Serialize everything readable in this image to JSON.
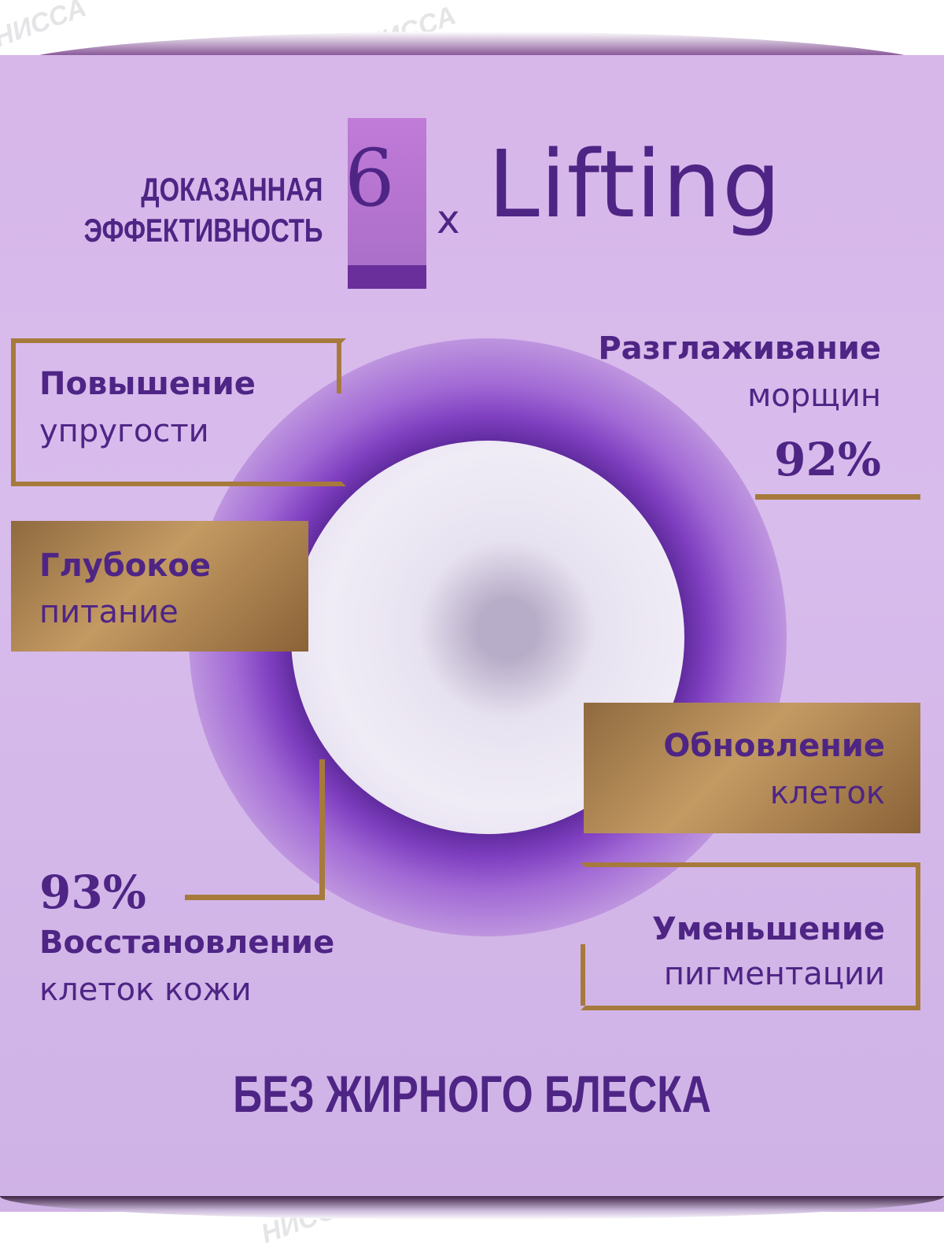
{
  "watermark": "НИССА",
  "header": {
    "line1": "ДОКАЗАННАЯ",
    "line2": "ЭФФЕКТИВНОСТЬ",
    "number": "6",
    "multiplier": "x",
    "brand": "Lifting"
  },
  "benefits": [
    {
      "title": "Повышение",
      "subtitle": "упругости"
    },
    {
      "title": "Глубокое",
      "subtitle": "питание"
    },
    {
      "title": "Разглаживание",
      "subtitle": "морщин",
      "percent": "92%"
    },
    {
      "title": "Обновление",
      "subtitle": "клеток"
    },
    {
      "title": "Уменьшение",
      "subtitle": "пигментации"
    },
    {
      "title": "Восстановление",
      "subtitle": "клеток кожи",
      "percent": "93%"
    }
  ],
  "footer": "БЕЗ ЖИРНОГО БЛЕСКА",
  "colors": {
    "text": "#4e2585",
    "gold": "#a67a3c",
    "background": "#d7b6ea"
  }
}
